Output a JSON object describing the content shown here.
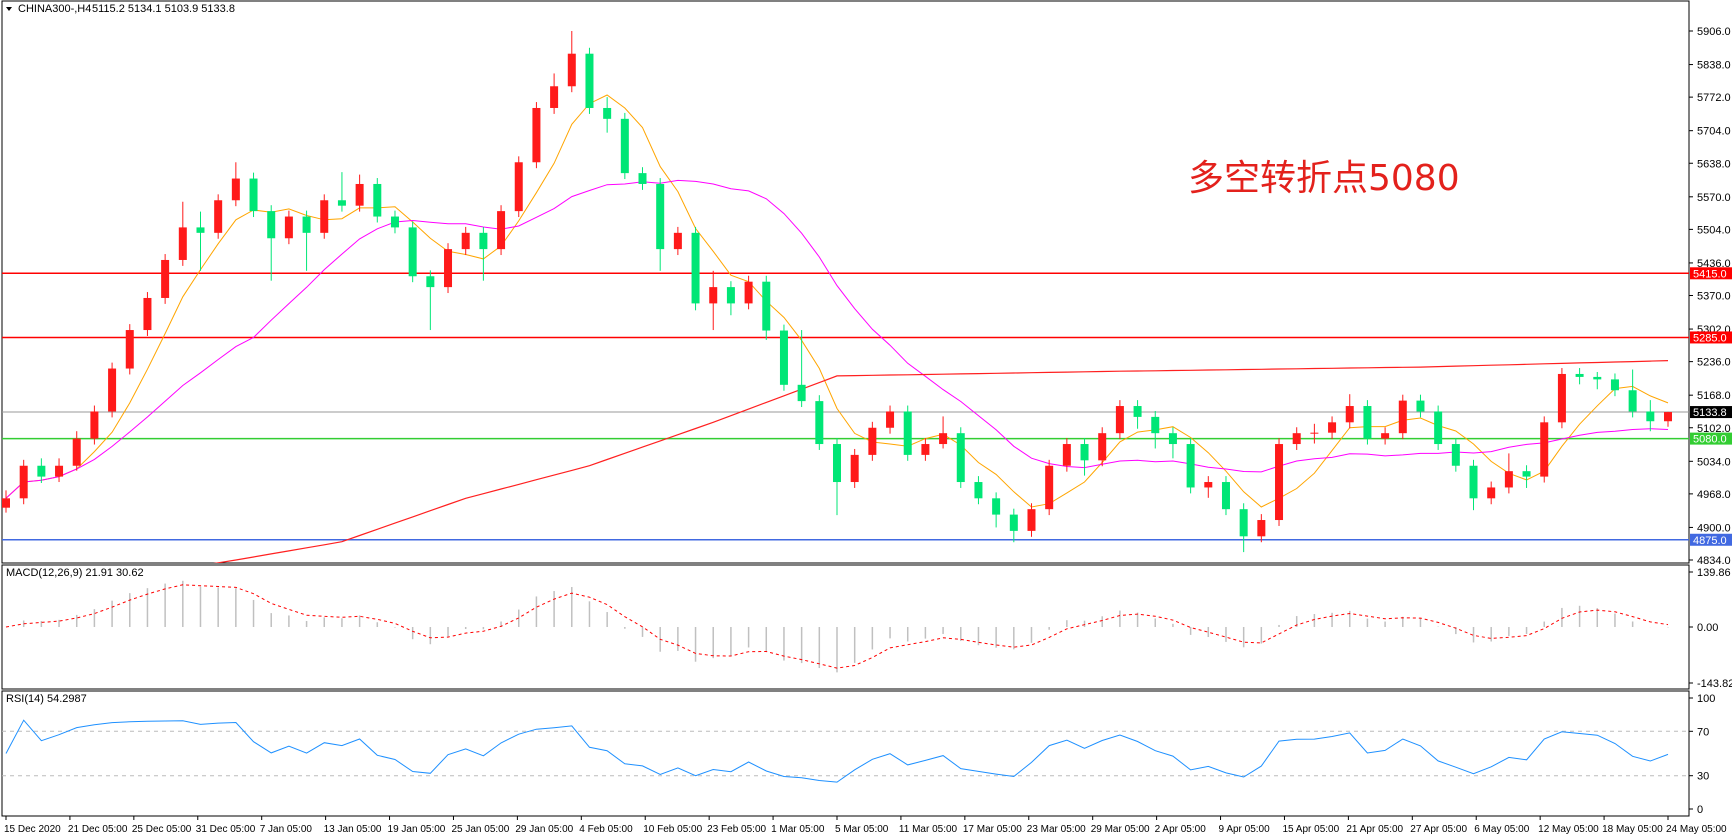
{
  "header": {
    "symbol": "CHINA300-,H4",
    "ohlc": "5115.2 5134.1 5103.9 5133.8"
  },
  "annotation": {
    "text": "多空转折点5080",
    "color": "#e3211c"
  },
  "colors": {
    "bull": "#ff1a1a",
    "bear": "#00e676",
    "ma_fast": "#ffa500",
    "ma_mid": "#ff00ff",
    "ma_long": "#ff2020",
    "macd_hist": "#c0c0c0",
    "macd_signal": "#ff0000",
    "rsi": "#1e90ff"
  },
  "chart_data": [
    {
      "type": "candlestick",
      "title": "CHINA300-,H4",
      "ylim": [
        4834,
        5906
      ],
      "y_ticks": [
        "5906.0",
        "5838.0",
        "5772.0",
        "5704.0",
        "5638.0",
        "5570.0",
        "5504.0",
        "5436.0",
        "5370.0",
        "5302.0",
        "5236.0",
        "5168.0",
        "5102.0",
        "5034.0",
        "4968.0",
        "4900.0",
        "4834.0"
      ],
      "x_ticks": [
        "15 Dec 2020",
        "21 Dec 05:00",
        "25 Dec 05:00",
        "31 Dec 05:00",
        "7 Jan 05:00",
        "13 Jan 05:00",
        "19 Jan 05:00",
        "25 Jan 05:00",
        "29 Jan 05:00",
        "4 Feb 05:00",
        "10 Feb 05:00",
        "23 Feb 05:00",
        "1 Mar 05:00",
        "5 Mar 05:00",
        "11 Mar 05:00",
        "17 Mar 05:00",
        "23 Mar 05:00",
        "29 Mar 05:00",
        "2 Apr 05:00",
        "9 Apr 05:00",
        "15 Apr 05:00",
        "21 Apr 05:00",
        "27 Apr 05:00",
        "6 May 05:00",
        "12 May 05:00",
        "18 May 05:00",
        "24 May 05:00"
      ],
      "open": [
        4940,
        4959,
        5025,
        5003,
        5025,
        5080,
        5135,
        5222,
        5300,
        5365,
        5442,
        5508,
        5497,
        5563,
        5607,
        5541,
        5486,
        5530,
        5497,
        5563,
        5552,
        5596,
        5530,
        5508,
        5409,
        5387,
        5464,
        5497,
        5464,
        5541,
        5640,
        5750,
        5794,
        5860,
        5750,
        5728,
        5618,
        5596,
        5464,
        5497,
        5354,
        5387,
        5354,
        5398,
        5299,
        5189,
        5156,
        5069,
        4992,
        5047,
        5102,
        5135,
        5047,
        5069,
        5091,
        4992,
        4959,
        4926,
        4893,
        4937,
        5025,
        5069,
        5036,
        5091,
        5146,
        5124,
        5091,
        5069,
        4981,
        4992,
        4937,
        4882,
        4915,
        5069,
        5091,
        5092,
        5113,
        5146,
        5080,
        5091,
        5157,
        5135,
        5069,
        5025,
        4959,
        4981,
        5014,
        5003,
        5113,
        5211,
        5205,
        5200,
        5178,
        5135,
        5115.2
      ],
      "high": [
        4975,
        5037,
        5040,
        5040,
        5095,
        5147,
        5234,
        5312,
        5377,
        5454,
        5560,
        5540,
        5575,
        5640,
        5619,
        5553,
        5542,
        5542,
        5575,
        5620,
        5615,
        5608,
        5542,
        5520,
        5421,
        5476,
        5509,
        5509,
        5553,
        5652,
        5762,
        5820,
        5906,
        5872,
        5772,
        5740,
        5630,
        5608,
        5509,
        5509,
        5420,
        5399,
        5410,
        5410,
        5311,
        5300,
        5168,
        5081,
        5059,
        5114,
        5147,
        5147,
        5081,
        5125,
        5103,
        5004,
        4971,
        4938,
        4949,
        5037,
        5081,
        5081,
        5103,
        5158,
        5158,
        5136,
        5103,
        5081,
        5004,
        5004,
        4949,
        4927,
        5081,
        5103,
        5110,
        5125,
        5170,
        5158,
        5103,
        5169,
        5169,
        5147,
        5081,
        5037,
        4993,
        5050,
        5026,
        5125,
        5223,
        5223,
        5215,
        5212,
        5220,
        5158,
        5134.1
      ],
      "low": [
        4930,
        4947,
        4990,
        4992,
        5015,
        5068,
        5123,
        5210,
        5288,
        5353,
        5430,
        5420,
        5485,
        5551,
        5529,
        5400,
        5474,
        5420,
        5485,
        5540,
        5540,
        5518,
        5496,
        5397,
        5300,
        5375,
        5452,
        5400,
        5452,
        5529,
        5628,
        5738,
        5782,
        5738,
        5700,
        5606,
        5584,
        5420,
        5452,
        5340,
        5300,
        5330,
        5342,
        5280,
        5177,
        5144,
        5057,
        4925,
        4980,
        5035,
        5090,
        5035,
        5035,
        5060,
        4980,
        4947,
        4900,
        4870,
        4881,
        4925,
        5013,
        5005,
        5024,
        5079,
        5100,
        5060,
        5040,
        4969,
        4960,
        4925,
        4850,
        4870,
        4903,
        5057,
        5070,
        5079,
        5101,
        5068,
        5068,
        5079,
        5123,
        5057,
        5013,
        4935,
        4947,
        4969,
        4980,
        4991,
        5101,
        5190,
        5180,
        5166,
        5123,
        5095,
        5103.9
      ],
      "close": [
        4959,
        5025,
        5003,
        5025,
        5080,
        5135,
        5222,
        5300,
        5365,
        5442,
        5508,
        5497,
        5563,
        5607,
        5541,
        5486,
        5530,
        5497,
        5563,
        5552,
        5596,
        5530,
        5508,
        5409,
        5387,
        5464,
        5497,
        5464,
        5541,
        5640,
        5750,
        5794,
        5860,
        5750,
        5728,
        5618,
        5596,
        5464,
        5497,
        5354,
        5387,
        5354,
        5398,
        5299,
        5189,
        5156,
        5069,
        4992,
        5047,
        5102,
        5135,
        5047,
        5069,
        5091,
        4992,
        4959,
        4926,
        4893,
        4937,
        5025,
        5069,
        5036,
        5091,
        5146,
        5124,
        5091,
        5069,
        4981,
        4992,
        4937,
        4882,
        4915,
        5069,
        5091,
        5092,
        5113,
        5146,
        5080,
        5091,
        5157,
        5135,
        5069,
        5025,
        4959,
        4981,
        5014,
        5003,
        5113,
        5211,
        5205,
        5200,
        5178,
        5135,
        5115.2,
        5133.8
      ],
      "ma_long_points": [
        [
          0,
          4760
        ],
        [
          13,
          4834
        ],
        [
          19,
          4871
        ],
        [
          26,
          4959
        ],
        [
          33,
          5025
        ],
        [
          40,
          5113
        ],
        [
          47,
          5207
        ],
        [
          62,
          5216
        ],
        [
          80,
          5225
        ],
        [
          94,
          5238
        ]
      ],
      "levels": [
        {
          "value": 5415.0,
          "label": "5415.0",
          "color": "#ff0000"
        },
        {
          "value": 5285.0,
          "label": "5285.0",
          "color": "#ff0000"
        },
        {
          "value": 5133.8,
          "label": "5133.8",
          "color": "#000000"
        },
        {
          "value": 5080.0,
          "label": "5080.0",
          "color": "#32cd32"
        },
        {
          "value": 4875.0,
          "label": "4875.0",
          "color": "#4169e1"
        }
      ]
    },
    {
      "type": "bar",
      "title": "MACD(12,26,9) 21.91 30.62",
      "ylim": [
        -143.82,
        139.86
      ],
      "y_ticks": [
        "139.86",
        "0.00",
        "-143.82"
      ]
    },
    {
      "type": "line",
      "title": "RSI(14) 54.2987",
      "ylim": [
        0,
        100
      ],
      "levels": [
        30,
        70
      ],
      "y_ticks": [
        "100",
        "70",
        "30",
        "0"
      ]
    }
  ]
}
